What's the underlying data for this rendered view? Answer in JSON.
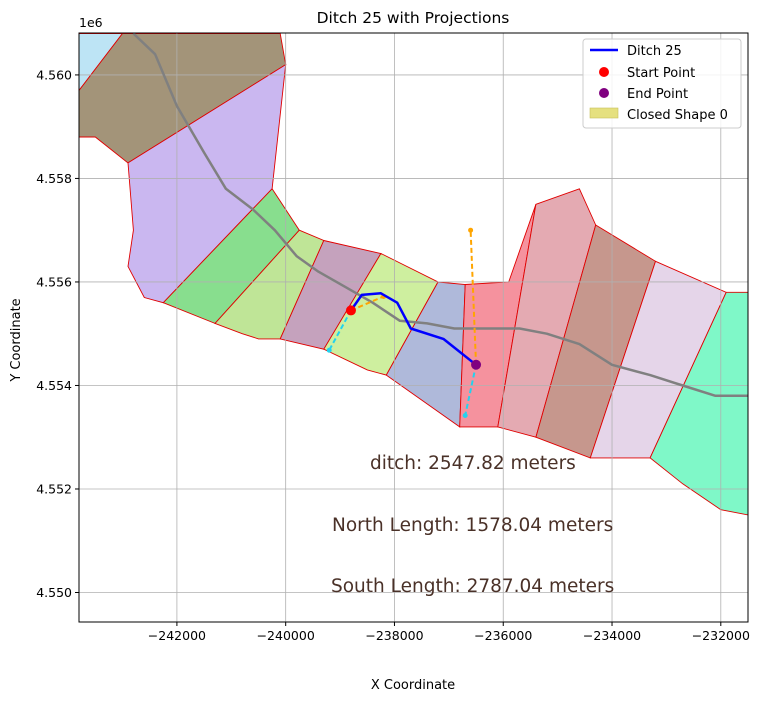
{
  "chart_data": {
    "type": "map",
    "title": "Ditch 25 with Projections",
    "xlabel": "X Coordinate",
    "ylabel": "Y Coordinate",
    "y_offset_label": "1e6",
    "xlim": [
      -243800,
      -231500
    ],
    "ylim": [
      4.54943,
      4.56081
    ],
    "x_ticks": [
      -242000,
      -240000,
      -238000,
      -236000,
      -234000,
      -232000
    ],
    "x_tick_labels": [
      "−242000",
      "−240000",
      "−238000",
      "−236000",
      "−234000",
      "−232000"
    ],
    "y_ticks": [
      4.55,
      4.552,
      4.554,
      4.556,
      4.558,
      4.56
    ],
    "y_tick_labels": [
      "4.550",
      "4.552",
      "4.554",
      "4.556",
      "4.558",
      "4.560"
    ],
    "grid": true,
    "legend_position": "top-right",
    "legend": [
      {
        "label": "Ditch 25",
        "kind": "line",
        "color": "#0000ff"
      },
      {
        "label": "Start Point",
        "kind": "marker",
        "color": "#ff0000"
      },
      {
        "label": "End Point",
        "kind": "marker",
        "color": "#800080"
      },
      {
        "label": "Closed Shape 0",
        "kind": "patch",
        "color": "#e5e07f"
      }
    ],
    "polygons": [
      {
        "color": "#bde4f5",
        "points": [
          [
            -243800,
            4.5608
          ],
          [
            -243000,
            4.5608
          ],
          [
            -243800,
            4.5597
          ]
        ]
      },
      {
        "color": "#a39479",
        "points": [
          [
            -243000,
            4.5608
          ],
          [
            -240100,
            4.5608
          ],
          [
            -240000,
            4.5602
          ],
          [
            -242900,
            4.5583
          ],
          [
            -243500,
            4.5588
          ],
          [
            -243800,
            4.5588
          ],
          [
            -243800,
            4.5597
          ]
        ]
      },
      {
        "color": "#cab7f0",
        "points": [
          [
            -242900,
            4.5583
          ],
          [
            -240000,
            4.5602
          ],
          [
            -240250,
            4.5578
          ],
          [
            -242250,
            4.5556
          ],
          [
            -242600,
            4.5557
          ],
          [
            -242900,
            4.5563
          ],
          [
            -242800,
            4.557
          ]
        ]
      },
      {
        "color": "#88de8e",
        "points": [
          [
            -240250,
            4.5578
          ],
          [
            -239750,
            4.557
          ],
          [
            -241300,
            4.5552
          ],
          [
            -242250,
            4.5556
          ]
        ]
      },
      {
        "color": "#bfe597",
        "points": [
          [
            -239750,
            4.557
          ],
          [
            -239300,
            4.5568
          ],
          [
            -240100,
            4.5549
          ],
          [
            -240500,
            4.5549
          ],
          [
            -240800,
            4.555
          ],
          [
            -241300,
            4.5552
          ]
        ]
      },
      {
        "color": "#c5a2bd",
        "points": [
          [
            -239300,
            4.5568
          ],
          [
            -238250,
            4.55655
          ],
          [
            -239300,
            4.5547
          ],
          [
            -240100,
            4.5549
          ]
        ]
      },
      {
        "color": "#ceef9f",
        "points": [
          [
            -238250,
            4.55655
          ],
          [
            -237200,
            4.556
          ],
          [
            -238150,
            4.5542
          ],
          [
            -238500,
            4.5543
          ],
          [
            -239300,
            4.5547
          ]
        ]
      },
      {
        "color": "#afb9da",
        "points": [
          [
            -237200,
            4.556
          ],
          [
            -236700,
            4.55595
          ],
          [
            -236800,
            4.5532
          ],
          [
            -238150,
            4.5542
          ]
        ]
      },
      {
        "color": "#f5929e",
        "points": [
          [
            -236700,
            4.55595
          ],
          [
            -235900,
            4.556
          ],
          [
            -235400,
            4.5575
          ],
          [
            -236100,
            4.5532
          ],
          [
            -236800,
            4.5532
          ]
        ]
      },
      {
        "color": "#e4aab2",
        "points": [
          [
            -235400,
            4.5575
          ],
          [
            -234600,
            4.5578
          ],
          [
            -234300,
            4.5571
          ],
          [
            -235400,
            4.553
          ],
          [
            -236100,
            4.5532
          ]
        ]
      },
      {
        "color": "#c6978d",
        "points": [
          [
            -234300,
            4.5571
          ],
          [
            -233200,
            4.5564
          ],
          [
            -234400,
            4.5526
          ],
          [
            -235400,
            4.553
          ]
        ]
      },
      {
        "color": "#e5d5e9",
        "points": [
          [
            -233200,
            4.5564
          ],
          [
            -231900,
            4.5558
          ],
          [
            -233300,
            4.5526
          ],
          [
            -234400,
            4.5526
          ]
        ]
      },
      {
        "color": "#7ff8c8",
        "points": [
          [
            -231900,
            4.5558
          ],
          [
            -231500,
            4.5558
          ],
          [
            -231500,
            4.5515
          ],
          [
            -232000,
            4.5516
          ],
          [
            -232700,
            4.5521
          ],
          [
            -233300,
            4.5526
          ]
        ]
      }
    ],
    "centerline": {
      "color": "#808080",
      "x": [
        -242800,
        -242400,
        -242000,
        -241500,
        -241100,
        -240600,
        -240200,
        -239800,
        -239400,
        -238900,
        -238400,
        -237900,
        -237400,
        -236900,
        -236300,
        -235700,
        -235200,
        -234600,
        -234000,
        -233300,
        -232700,
        -232100,
        -231700,
        -231500
      ],
      "y": [
        4.5608,
        4.5604,
        4.5594,
        4.5585,
        4.5578,
        4.5574,
        4.557,
        4.5565,
        4.5562,
        4.5559,
        4.5556,
        4.55525,
        4.5552,
        4.5551,
        4.5551,
        4.5551,
        4.555,
        4.5548,
        4.5544,
        4.5542,
        4.554,
        4.5538,
        4.5538,
        4.5538
      ]
    },
    "series": [
      {
        "name": "Ditch 25",
        "type": "line",
        "color": "#0000ff",
        "x": [
          -238800,
          -238600,
          -238250,
          -237950,
          -237700,
          -237100,
          -236500
        ],
        "y": [
          4.55545,
          4.55575,
          4.55578,
          4.5556,
          4.5551,
          4.5549,
          4.5544
        ]
      }
    ],
    "points": [
      {
        "name": "Start Point",
        "color": "#ff0000",
        "x": -238800,
        "y": 4.55545
      },
      {
        "name": "End Point",
        "color": "#800080",
        "x": -236500,
        "y": 4.5544
      }
    ],
    "projections": [
      {
        "color": "#ffa500",
        "x": [
          -238800,
          -238200
        ],
        "y": [
          4.55545,
          4.55572
        ]
      },
      {
        "color": "#22d3ee",
        "x": [
          -238800,
          -239200
        ],
        "y": [
          4.55545,
          4.55468
        ]
      },
      {
        "color": "#ffa500",
        "x": [
          -236500,
          -236600
        ],
        "y": [
          4.5544,
          4.557
        ]
      },
      {
        "color": "#22d3ee",
        "x": [
          -236500,
          -236700
        ],
        "y": [
          4.5544,
          4.55342
        ]
      }
    ],
    "annotations": [
      {
        "text": "ditch: 2547.82 meters"
      },
      {
        "text": "North Length: 1578.04 meters"
      },
      {
        "text": "South Length: 2787.04 meters"
      }
    ]
  }
}
